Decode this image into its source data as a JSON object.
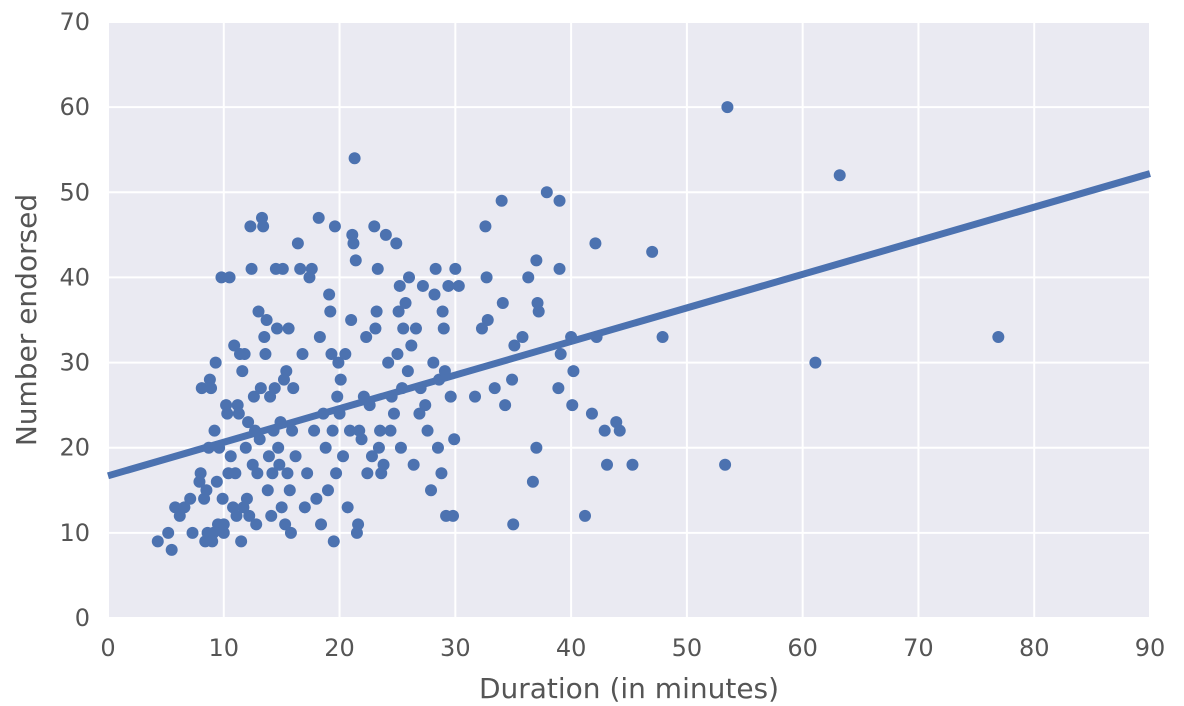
{
  "chart_data": {
    "type": "scatter",
    "title": "",
    "xlabel": "Duration (in minutes)",
    "ylabel": "Number endorsed",
    "xlim": [
      0,
      90
    ],
    "ylim": [
      0,
      70
    ],
    "xticks": [
      0,
      10,
      20,
      30,
      40,
      50,
      60,
      70,
      80,
      90
    ],
    "yticks": [
      0,
      10,
      20,
      30,
      40,
      50,
      60,
      70
    ],
    "grid": true,
    "background_color": "#EAEAF2",
    "grid_color": "#FFFFFF",
    "point_color": "#4C72B0",
    "line_color": "#4C72B0",
    "regression_line": {
      "x": [
        0,
        90
      ],
      "y": [
        16.7,
        52.2
      ]
    },
    "points": [
      [
        4.3,
        9
      ],
      [
        5.2,
        10
      ],
      [
        5.5,
        8
      ],
      [
        5.8,
        13
      ],
      [
        6.2,
        12
      ],
      [
        6.6,
        13
      ],
      [
        7.1,
        14
      ],
      [
        7.3,
        10
      ],
      [
        7.9,
        16
      ],
      [
        8.0,
        17
      ],
      [
        8.1,
        27
      ],
      [
        8.3,
        14
      ],
      [
        8.4,
        9
      ],
      [
        8.5,
        15
      ],
      [
        8.6,
        10
      ],
      [
        8.7,
        20
      ],
      [
        8.8,
        28
      ],
      [
        8.9,
        27
      ],
      [
        9.0,
        9
      ],
      [
        9.1,
        10
      ],
      [
        9.2,
        22
      ],
      [
        9.3,
        30
      ],
      [
        9.4,
        16
      ],
      [
        9.5,
        11
      ],
      [
        9.6,
        20
      ],
      [
        9.8,
        40
      ],
      [
        9.9,
        14
      ],
      [
        10.0,
        11
      ],
      [
        10.0,
        10
      ],
      [
        10.2,
        25
      ],
      [
        10.3,
        24
      ],
      [
        10.4,
        17
      ],
      [
        10.5,
        40
      ],
      [
        10.6,
        19
      ],
      [
        10.8,
        13
      ],
      [
        10.9,
        32
      ],
      [
        11.0,
        17
      ],
      [
        11.1,
        12
      ],
      [
        11.2,
        25
      ],
      [
        11.3,
        24
      ],
      [
        11.4,
        31
      ],
      [
        11.5,
        9
      ],
      [
        11.6,
        29
      ],
      [
        11.7,
        13
      ],
      [
        11.8,
        31
      ],
      [
        11.9,
        20
      ],
      [
        12.0,
        14
      ],
      [
        12.1,
        23
      ],
      [
        12.2,
        12
      ],
      [
        12.3,
        46
      ],
      [
        12.4,
        41
      ],
      [
        12.5,
        18
      ],
      [
        12.6,
        26
      ],
      [
        12.7,
        22
      ],
      [
        12.8,
        11
      ],
      [
        12.9,
        17
      ],
      [
        13.0,
        36
      ],
      [
        13.1,
        21
      ],
      [
        13.2,
        27
      ],
      [
        13.3,
        47
      ],
      [
        13.4,
        46
      ],
      [
        13.5,
        33
      ],
      [
        13.6,
        31
      ],
      [
        13.7,
        35
      ],
      [
        13.8,
        15
      ],
      [
        13.9,
        19
      ],
      [
        14.0,
        26
      ],
      [
        14.1,
        12
      ],
      [
        14.2,
        17
      ],
      [
        14.3,
        22
      ],
      [
        14.4,
        27
      ],
      [
        14.5,
        41
      ],
      [
        14.6,
        34
      ],
      [
        14.7,
        20
      ],
      [
        14.8,
        18
      ],
      [
        14.9,
        23
      ],
      [
        15.0,
        13
      ],
      [
        15.1,
        41
      ],
      [
        15.2,
        28
      ],
      [
        15.3,
        11
      ],
      [
        15.4,
        29
      ],
      [
        15.5,
        17
      ],
      [
        15.6,
        34
      ],
      [
        15.7,
        15
      ],
      [
        15.8,
        10
      ],
      [
        15.9,
        22
      ],
      [
        16.0,
        27
      ],
      [
        16.2,
        19
      ],
      [
        16.4,
        44
      ],
      [
        16.6,
        41
      ],
      [
        16.8,
        31
      ],
      [
        17.0,
        13
      ],
      [
        17.2,
        17
      ],
      [
        17.4,
        40
      ],
      [
        17.6,
        41
      ],
      [
        17.8,
        22
      ],
      [
        18.0,
        14
      ],
      [
        18.2,
        47
      ],
      [
        18.3,
        33
      ],
      [
        18.4,
        11
      ],
      [
        18.6,
        24
      ],
      [
        18.8,
        20
      ],
      [
        19.0,
        15
      ],
      [
        19.1,
        38
      ],
      [
        19.2,
        36
      ],
      [
        19.3,
        31
      ],
      [
        19.4,
        22
      ],
      [
        19.5,
        9
      ],
      [
        19.6,
        46
      ],
      [
        19.7,
        17
      ],
      [
        19.8,
        26
      ],
      [
        19.9,
        30
      ],
      [
        20.0,
        24
      ],
      [
        20.1,
        28
      ],
      [
        20.3,
        19
      ],
      [
        20.5,
        31
      ],
      [
        20.7,
        13
      ],
      [
        20.9,
        22
      ],
      [
        21.0,
        35
      ],
      [
        21.1,
        45
      ],
      [
        21.2,
        44
      ],
      [
        21.3,
        54
      ],
      [
        21.4,
        42
      ],
      [
        21.5,
        10
      ],
      [
        21.6,
        11
      ],
      [
        21.7,
        22
      ],
      [
        21.9,
        21
      ],
      [
        22.1,
        26
      ],
      [
        22.3,
        33
      ],
      [
        22.4,
        17
      ],
      [
        22.6,
        25
      ],
      [
        22.8,
        19
      ],
      [
        23.0,
        46
      ],
      [
        23.1,
        34
      ],
      [
        23.2,
        36
      ],
      [
        23.3,
        41
      ],
      [
        23.4,
        20
      ],
      [
        23.5,
        22
      ],
      [
        23.6,
        17
      ],
      [
        23.8,
        18
      ],
      [
        24.0,
        45
      ],
      [
        24.2,
        30
      ],
      [
        24.4,
        22
      ],
      [
        24.5,
        26
      ],
      [
        24.7,
        24
      ],
      [
        24.9,
        44
      ],
      [
        25.0,
        31
      ],
      [
        25.1,
        36
      ],
      [
        25.2,
        39
      ],
      [
        25.3,
        20
      ],
      [
        25.4,
        27
      ],
      [
        25.5,
        34
      ],
      [
        25.7,
        37
      ],
      [
        25.9,
        29
      ],
      [
        26.0,
        40
      ],
      [
        26.2,
        32
      ],
      [
        26.4,
        18
      ],
      [
        26.6,
        34
      ],
      [
        26.9,
        24
      ],
      [
        27.0,
        27
      ],
      [
        27.2,
        39
      ],
      [
        27.4,
        25
      ],
      [
        27.6,
        22
      ],
      [
        27.9,
        15
      ],
      [
        28.1,
        30
      ],
      [
        28.2,
        38
      ],
      [
        28.3,
        41
      ],
      [
        28.5,
        20
      ],
      [
        28.6,
        28
      ],
      [
        28.8,
        17
      ],
      [
        28.9,
        36
      ],
      [
        29.0,
        34
      ],
      [
        29.1,
        29
      ],
      [
        29.2,
        12
      ],
      [
        29.4,
        39
      ],
      [
        29.6,
        26
      ],
      [
        29.8,
        12
      ],
      [
        29.9,
        21
      ],
      [
        30.0,
        41
      ],
      [
        30.3,
        39
      ],
      [
        31.7,
        26
      ],
      [
        32.3,
        34
      ],
      [
        32.6,
        46
      ],
      [
        32.7,
        40
      ],
      [
        32.8,
        35
      ],
      [
        33.4,
        27
      ],
      [
        34.0,
        49
      ],
      [
        34.1,
        37
      ],
      [
        34.3,
        25
      ],
      [
        34.9,
        28
      ],
      [
        35.0,
        11
      ],
      [
        35.1,
        32
      ],
      [
        35.8,
        33
      ],
      [
        36.3,
        40
      ],
      [
        36.7,
        16
      ],
      [
        37.0,
        42
      ],
      [
        37.1,
        37
      ],
      [
        37.2,
        36
      ],
      [
        37.0,
        20
      ],
      [
        37.9,
        50
      ],
      [
        38.9,
        27
      ],
      [
        39.0,
        49
      ],
      [
        39.1,
        31
      ],
      [
        39.0,
        41
      ],
      [
        40.0,
        33
      ],
      [
        40.1,
        25
      ],
      [
        40.2,
        29
      ],
      [
        41.2,
        12
      ],
      [
        41.8,
        24
      ],
      [
        42.1,
        44
      ],
      [
        42.2,
        33
      ],
      [
        42.9,
        22
      ],
      [
        43.1,
        18
      ],
      [
        43.9,
        23
      ],
      [
        44.2,
        22
      ],
      [
        45.3,
        18
      ],
      [
        47.0,
        43
      ],
      [
        47.9,
        33
      ],
      [
        53.3,
        18
      ],
      [
        53.5,
        60
      ],
      [
        61.1,
        30
      ],
      [
        63.2,
        52
      ],
      [
        76.9,
        33
      ]
    ]
  }
}
